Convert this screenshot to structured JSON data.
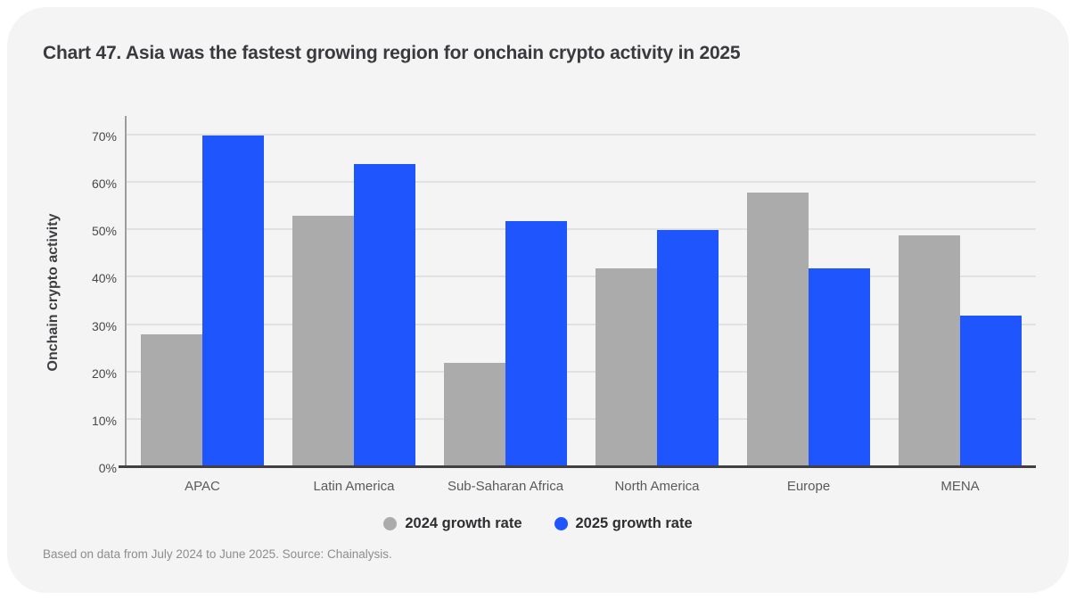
{
  "card": {
    "title": "Chart 47. Asia was the fastest growing region for onchain crypto activity in 2025",
    "footnote": "Based on data from July 2024 to June 2025. Source: Chainalysis."
  },
  "chart_data": {
    "type": "bar",
    "title": "Chart 47. Asia was the fastest growing region for onchain crypto activity in 2025",
    "xlabel": "",
    "ylabel": "Onchain crypto activity",
    "categories": [
      "APAC",
      "Latin America",
      "Sub-Saharan Africa",
      "North America",
      "Europe",
      "MENA"
    ],
    "series": [
      {
        "name": "2024 growth rate",
        "color": "#ABABAB",
        "values": [
          28,
          53,
          22,
          42,
          58,
          49
        ]
      },
      {
        "name": "2025 growth rate",
        "color": "#1E55FC",
        "values": [
          70,
          64,
          52,
          50,
          42,
          32
        ]
      }
    ],
    "ylim": [
      0,
      70
    ],
    "ytick_step": 10,
    "ytick_suffix": "%",
    "grid": true,
    "legend_position": "bottom"
  },
  "colors": {
    "card_background": "#F4F4F5",
    "page_background": "#FFFFFF",
    "gridline": "#E1E1E3",
    "axis_line": "#9C9C9E",
    "baseline": "#414144",
    "bar_2024": "#ABABAB",
    "bar_2025": "#1E55FC",
    "title_text": "#3A3A3E",
    "footnote_text": "#8D8D8F"
  }
}
